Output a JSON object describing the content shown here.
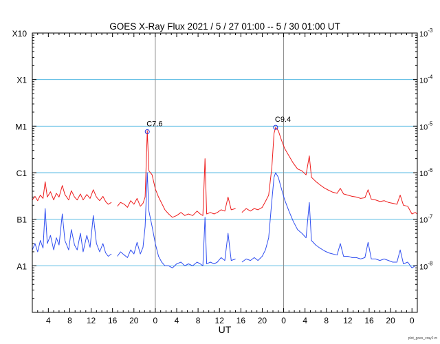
{
  "chart_data": {
    "type": "line",
    "title": "GOES X-Ray Flux   2021  /  5  / 27   01:00 --  5  / 30   01:00   UT",
    "xlabel": "UT",
    "footnote": "plot_goes_xray2.m",
    "x_range_hours": [
      0,
      72
    ],
    "x_tick_labels": [
      "4",
      "8",
      "12",
      "16",
      "20",
      "0",
      "4",
      "8",
      "12",
      "16",
      "20",
      "0",
      "4",
      "8",
      "12",
      "16",
      "20",
      "0"
    ],
    "y_scale": "log",
    "ylim": [
      1e-09,
      0.001
    ],
    "y_left_labels": [
      "A1",
      "B1",
      "C1",
      "M1",
      "X1",
      "X10"
    ],
    "y_right_labels": [
      "10^-8",
      "10^-7",
      "10^-6",
      "10^-5",
      "10^-4",
      "10^-3"
    ],
    "day_boundaries_hours": [
      23,
      47
    ],
    "grid_y": true,
    "series": [
      {
        "color": "#ee1c1c",
        "points": [
          [
            0,
            2.6e-07
          ],
          [
            0.5,
            3.1e-07
          ],
          [
            1,
            2.5e-07
          ],
          [
            1.5,
            3.3e-07
          ],
          [
            2,
            2.8e-07
          ],
          [
            2.4,
            6.4e-07
          ],
          [
            2.8,
            3e-07
          ],
          [
            3.4,
            3.9e-07
          ],
          [
            4,
            2.6e-07
          ],
          [
            4.5,
            3.6e-07
          ],
          [
            5,
            3e-07
          ],
          [
            5.6,
            5.3e-07
          ],
          [
            6.1,
            3.4e-07
          ],
          [
            6.8,
            2.6e-07
          ],
          [
            7.3,
            4.1e-07
          ],
          [
            7.9,
            3e-07
          ],
          [
            8.4,
            2.6e-07
          ],
          [
            9,
            3.5e-07
          ],
          [
            9.5,
            2.6e-07
          ],
          [
            10.2,
            3.4e-07
          ],
          [
            10.8,
            2.8e-07
          ],
          [
            11.4,
            4.3e-07
          ],
          [
            12,
            3e-07
          ],
          [
            12.6,
            2.5e-07
          ],
          [
            13.2,
            3.1e-07
          ],
          [
            13.7,
            2.4e-07
          ],
          [
            14.2,
            2.1e-07
          ],
          [
            14.8,
            2.3e-07
          ],
          [
            null,
            null
          ],
          [
            15.9,
            1.9e-07
          ],
          [
            16.5,
            2.3e-07
          ],
          [
            17.2,
            2.1e-07
          ],
          [
            17.8,
            1.8e-07
          ],
          [
            18.4,
            2.5e-07
          ],
          [
            19,
            2.1e-07
          ],
          [
            19.6,
            2.8e-07
          ],
          [
            20.2,
            1.9e-07
          ],
          [
            20.7,
            2.2e-07
          ],
          [
            21.1,
            3e-07
          ],
          [
            21.5,
            8e-06
          ],
          [
            21.8,
            1.1e-06
          ],
          [
            22.4,
            9e-07
          ],
          [
            23,
            4.5e-07
          ],
          [
            23.6,
            3e-07
          ],
          [
            24.2,
            2.2e-07
          ],
          [
            24.8,
            1.6e-07
          ],
          [
            25.5,
            1.3e-07
          ],
          [
            26.2,
            1.1e-07
          ],
          [
            27,
            1.2e-07
          ],
          [
            27.8,
            1.4e-07
          ],
          [
            28.5,
            1.2e-07
          ],
          [
            29.2,
            1.3e-07
          ],
          [
            30,
            1.2e-07
          ],
          [
            30.8,
            1.5e-07
          ],
          [
            31.4,
            1.3e-07
          ],
          [
            31.9,
            1.2e-07
          ],
          [
            32.3,
            2e-06
          ],
          [
            32.6,
            1.3e-07
          ],
          [
            33.3,
            1.4e-07
          ],
          [
            34,
            1.3e-07
          ],
          [
            34.6,
            1.4e-07
          ],
          [
            35.3,
            1.6e-07
          ],
          [
            36,
            1.5e-07
          ],
          [
            36.6,
            3e-07
          ],
          [
            37.2,
            1.6e-07
          ],
          [
            38,
            1.7e-07
          ],
          [
            null,
            null
          ],
          [
            39.2,
            1.4e-07
          ],
          [
            40,
            1.7e-07
          ],
          [
            40.8,
            1.5e-07
          ],
          [
            41.5,
            1.7e-07
          ],
          [
            42.2,
            1.6e-07
          ],
          [
            43,
            1.8e-07
          ],
          [
            43.6,
            2.4e-07
          ],
          [
            44.2,
            3.3e-07
          ],
          [
            44.8,
            1.3e-06
          ],
          [
            45.2,
            7e-06
          ],
          [
            45.5,
            9.4e-06
          ],
          [
            46,
            8e-06
          ],
          [
            46.6,
            5e-06
          ],
          [
            47.2,
            3.3e-06
          ],
          [
            48,
            2.3e-06
          ],
          [
            48.8,
            1.6e-06
          ],
          [
            49.6,
            1.2e-06
          ],
          [
            50.4,
            1.1e-06
          ],
          [
            51.2,
            9e-07
          ],
          [
            51.8,
            2.3e-06
          ],
          [
            52.2,
            8e-07
          ],
          [
            53,
            6.5e-07
          ],
          [
            53.8,
            5.5e-07
          ],
          [
            54.6,
            4.7e-07
          ],
          [
            55.4,
            4.2e-07
          ],
          [
            56.2,
            3.8e-07
          ],
          [
            57,
            3.6e-07
          ],
          [
            57.6,
            4.6e-07
          ],
          [
            58.2,
            3.5e-07
          ],
          [
            59,
            3.3e-07
          ],
          [
            59.8,
            3.1e-07
          ],
          [
            60.6,
            3e-07
          ],
          [
            61.4,
            2.8e-07
          ],
          [
            62.2,
            2.9e-07
          ],
          [
            62.8,
            4.3e-07
          ],
          [
            63.4,
            2.7e-07
          ],
          [
            64.2,
            2.6e-07
          ],
          [
            65,
            2.4e-07
          ],
          [
            65.8,
            2.5e-07
          ],
          [
            66.6,
            2.3e-07
          ],
          [
            67.4,
            2.2e-07
          ],
          [
            68.2,
            2.1e-07
          ],
          [
            68.8,
            3.3e-07
          ],
          [
            69.4,
            2e-07
          ],
          [
            70.2,
            1.9e-07
          ],
          [
            71,
            1.3e-07
          ],
          [
            71.6,
            1.4e-07
          ],
          [
            72,
            1.3e-07
          ]
        ]
      },
      {
        "color": "#2f4ef0",
        "points": [
          [
            0,
            2.2e-08
          ],
          [
            0.5,
            3e-08
          ],
          [
            1,
            2e-08
          ],
          [
            1.5,
            3.5e-08
          ],
          [
            2,
            2.4e-08
          ],
          [
            2.4,
            1.7e-07
          ],
          [
            2.8,
            3e-08
          ],
          [
            3.4,
            4.5e-08
          ],
          [
            4,
            2.2e-08
          ],
          [
            4.5,
            4e-08
          ],
          [
            5,
            2.8e-08
          ],
          [
            5.6,
            1.3e-07
          ],
          [
            6.1,
            3.5e-08
          ],
          [
            6.8,
            2.2e-08
          ],
          [
            7.3,
            6e-08
          ],
          [
            7.9,
            2.8e-08
          ],
          [
            8.4,
            2.2e-08
          ],
          [
            9,
            5e-08
          ],
          [
            9.5,
            2e-08
          ],
          [
            10.2,
            4.5e-08
          ],
          [
            10.8,
            2.5e-08
          ],
          [
            11.4,
            1.2e-07
          ],
          [
            12,
            3e-08
          ],
          [
            12.6,
            2e-08
          ],
          [
            13.2,
            3e-08
          ],
          [
            13.7,
            1.9e-08
          ],
          [
            14.2,
            1.6e-08
          ],
          [
            14.8,
            1.8e-08
          ],
          [
            null,
            null
          ],
          [
            15.9,
            1.6e-08
          ],
          [
            16.5,
            2e-08
          ],
          [
            17.2,
            1.7e-08
          ],
          [
            17.8,
            1.5e-08
          ],
          [
            18.4,
            2.2e-08
          ],
          [
            19,
            1.8e-08
          ],
          [
            19.6,
            3.2e-08
          ],
          [
            20.2,
            1.8e-08
          ],
          [
            20.7,
            2.5e-08
          ],
          [
            21.1,
            7e-08
          ],
          [
            21.5,
            1e-06
          ],
          [
            21.8,
            1.5e-07
          ],
          [
            22.4,
            7e-08
          ],
          [
            23,
            3e-08
          ],
          [
            23.6,
            1.6e-08
          ],
          [
            24.2,
            1.2e-08
          ],
          [
            24.8,
            1e-08
          ],
          [
            25.5,
            1e-08
          ],
          [
            26.2,
            9e-09
          ],
          [
            27,
            1.1e-08
          ],
          [
            27.8,
            1.2e-08
          ],
          [
            28.5,
            1e-08
          ],
          [
            29.2,
            1.1e-08
          ],
          [
            30,
            1e-08
          ],
          [
            30.8,
            1.2e-08
          ],
          [
            31.4,
            1.1e-08
          ],
          [
            31.9,
            1e-08
          ],
          [
            32.3,
            1.1e-07
          ],
          [
            32.6,
            1.1e-08
          ],
          [
            33.3,
            1.2e-08
          ],
          [
            34,
            1.1e-08
          ],
          [
            34.6,
            1.2e-08
          ],
          [
            35.3,
            1.5e-08
          ],
          [
            36,
            1.3e-08
          ],
          [
            36.6,
            5e-08
          ],
          [
            37.2,
            1.3e-08
          ],
          [
            38,
            1.4e-08
          ],
          [
            null,
            null
          ],
          [
            39.2,
            1.2e-08
          ],
          [
            40,
            1.4e-08
          ],
          [
            40.8,
            1.3e-08
          ],
          [
            41.5,
            1.5e-08
          ],
          [
            42.2,
            1.3e-08
          ],
          [
            43,
            1.6e-08
          ],
          [
            43.6,
            2.2e-08
          ],
          [
            44.2,
            4e-08
          ],
          [
            44.8,
            2.5e-07
          ],
          [
            45.2,
            8e-07
          ],
          [
            45.5,
            1e-06
          ],
          [
            46,
            8e-07
          ],
          [
            46.6,
            4.5e-07
          ],
          [
            47.2,
            2.6e-07
          ],
          [
            48,
            1.5e-07
          ],
          [
            48.8,
            9e-08
          ],
          [
            49.6,
            6e-08
          ],
          [
            50.4,
            5e-08
          ],
          [
            51.2,
            4e-08
          ],
          [
            51.8,
            2.3e-07
          ],
          [
            52.2,
            3.5e-08
          ],
          [
            53,
            2.8e-08
          ],
          [
            53.8,
            2.4e-08
          ],
          [
            54.6,
            2.1e-08
          ],
          [
            55.4,
            1.9e-08
          ],
          [
            56.2,
            1.8e-08
          ],
          [
            57,
            1.7e-08
          ],
          [
            57.6,
            3e-08
          ],
          [
            58.2,
            1.6e-08
          ],
          [
            59,
            1.6e-08
          ],
          [
            59.8,
            1.5e-08
          ],
          [
            60.6,
            1.5e-08
          ],
          [
            61.4,
            1.4e-08
          ],
          [
            62.2,
            1.5e-08
          ],
          [
            62.8,
            3.2e-08
          ],
          [
            63.4,
            1.4e-08
          ],
          [
            64.2,
            1.4e-08
          ],
          [
            65,
            1.3e-08
          ],
          [
            65.8,
            1.4e-08
          ],
          [
            66.6,
            1.3e-08
          ],
          [
            67.4,
            1.2e-08
          ],
          [
            68.2,
            1.2e-08
          ],
          [
            68.8,
            2.2e-08
          ],
          [
            69.4,
            1.1e-08
          ],
          [
            70.2,
            1.2e-08
          ],
          [
            71,
            9e-09
          ],
          [
            71.6,
            1e-08
          ],
          [
            72,
            1e-08
          ]
        ]
      }
    ],
    "annotations": [
      {
        "label": "C7.6",
        "x": 21.5,
        "y": 7.6e-06
      },
      {
        "label": "C9.4",
        "x": 45.5,
        "y": 9.4e-06
      }
    ]
  }
}
